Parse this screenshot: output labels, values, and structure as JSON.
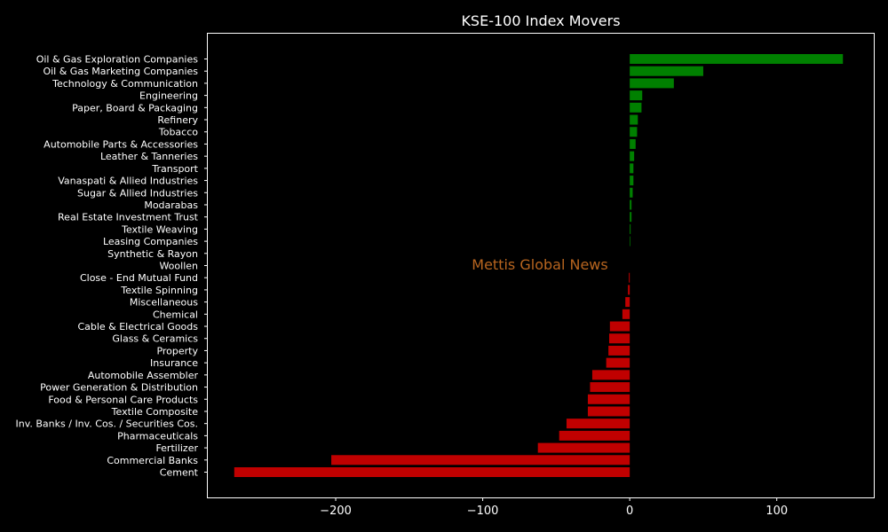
{
  "chart_data": {
    "type": "bar",
    "orientation": "horizontal",
    "title": "KSE-100 Index Movers",
    "xlabel": "",
    "ylabel": "",
    "xlim": [
      -287,
      166
    ],
    "xticks": [
      -200,
      -100,
      0,
      100
    ],
    "xtick_labels": [
      "−200",
      "−100",
      "0",
      "100"
    ],
    "grid": false,
    "positive_color": "#008000",
    "negative_color": "#c00000",
    "background": "#000000",
    "text_color": "#ffffff",
    "categories": [
      "Oil & Gas Exploration Companies",
      "Oil & Gas Marketing Companies",
      "Technology & Communication",
      "Engineering",
      "Paper, Board & Packaging",
      "Refinery",
      "Tobacco",
      "Automobile Parts & Accessories",
      "Leather & Tanneries",
      "Transport",
      "Vanaspati & Allied Industries",
      "Sugar & Allied Industries",
      "Modarabas",
      "Real Estate Investment Trust",
      "Textile Weaving",
      "Leasing Companies",
      "Synthetic & Rayon",
      "Woollen",
      "Close - End Mutual Fund",
      "Textile Spinning",
      "Miscellaneous",
      "Chemical",
      "Cable & Electrical Goods",
      "Glass & Ceramics",
      "Property",
      "Insurance",
      "Automobile Assembler",
      "Power Generation & Distribution",
      "Food & Personal Care Products",
      "Textile Composite",
      "Inv. Banks / Inv. Cos. / Securities Cos.",
      "Pharmaceuticals",
      "Fertilizer",
      "Commercial Banks",
      "Cement"
    ],
    "values": [
      145,
      50,
      30,
      8.5,
      8,
      5.5,
      5,
      4,
      3,
      2.5,
      2.5,
      2,
      1.2,
      1.2,
      0.6,
      0.4,
      0,
      0,
      -0.6,
      -1.2,
      -3,
      -5,
      -13.5,
      -14,
      -14.5,
      -16,
      -25.5,
      -27,
      -28.5,
      -28.5,
      -43,
      -48,
      -62.5,
      -203,
      -269
    ]
  },
  "watermark": "Mettis Global News"
}
